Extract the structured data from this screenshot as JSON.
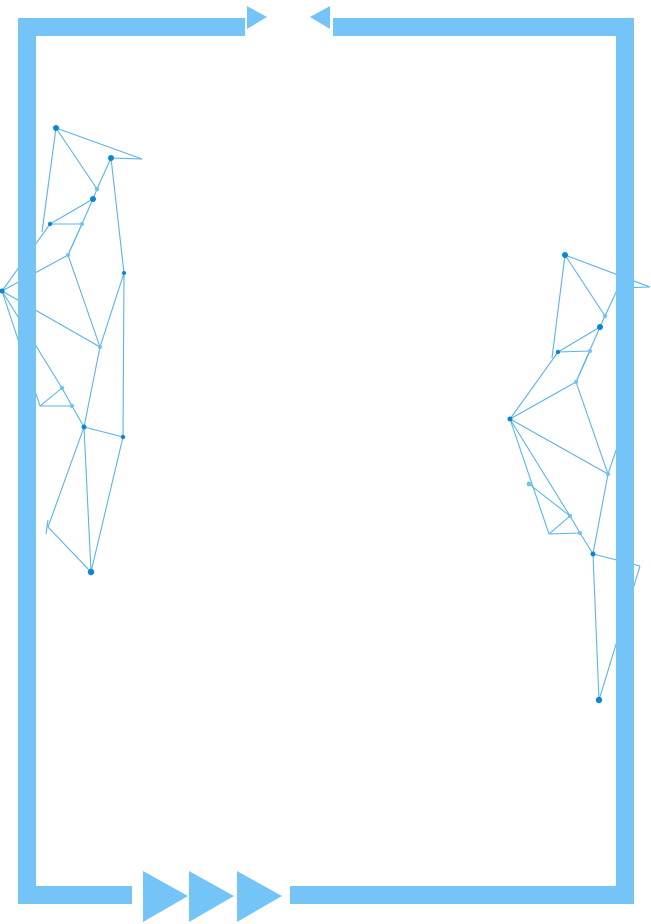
{
  "colors": {
    "frame": "#74C4F8",
    "network_line": "#5AB4E6",
    "network_node_dark": "#0A86D8",
    "network_node_light": "#6FC2F2",
    "background": "#FFFFFF"
  },
  "icons": {
    "top_left_arrow": "triangle-right-icon",
    "top_right_arrow": "triangle-left-icon",
    "bottom_arrows": [
      "triangle-right-icon",
      "triangle-right-icon",
      "triangle-right-icon"
    ]
  }
}
